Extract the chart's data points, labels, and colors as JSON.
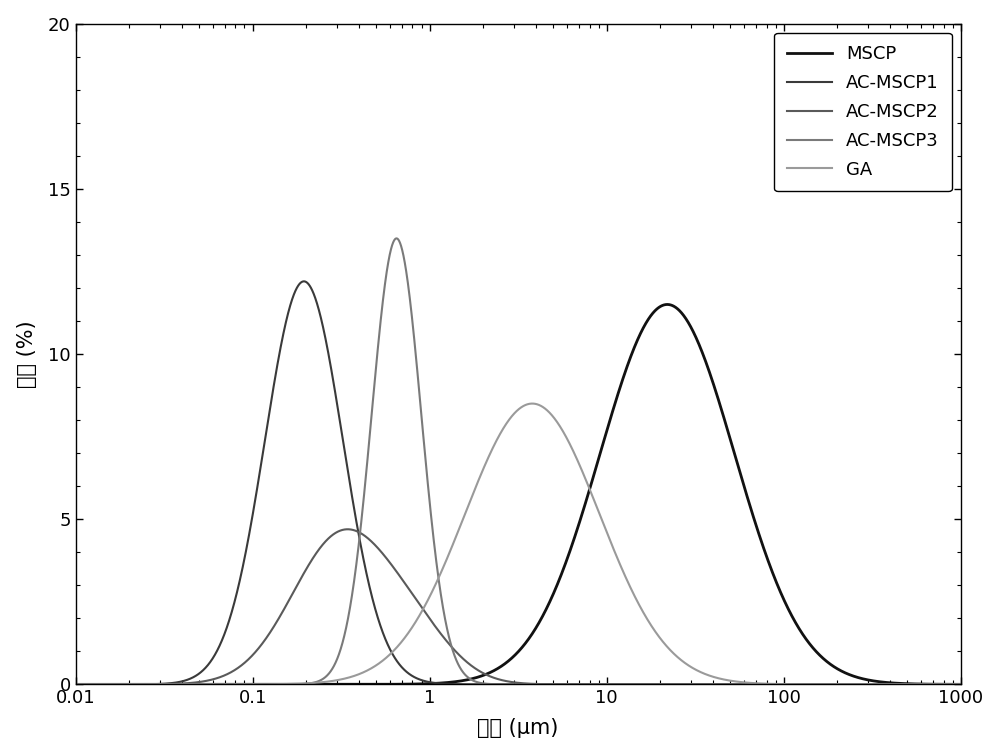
{
  "series": [
    {
      "label": "MSCP",
      "color": "#111111",
      "linewidth": 2.0,
      "peaks": [
        {
          "mu": 22.0,
          "val": 11.5,
          "sigma": 0.38
        }
      ]
    },
    {
      "label": "AC-MSCP1",
      "color": "#3a3a3a",
      "linewidth": 1.5,
      "peaks": [
        {
          "mu": 0.195,
          "val": 12.2,
          "sigma": 0.22
        }
      ]
    },
    {
      "label": "AC-MSCP2",
      "color": "#5a5a5a",
      "linewidth": 1.5,
      "peaks": [
        {
          "mu": 0.32,
          "val": 4.5,
          "sigma": 0.28
        },
        {
          "mu": 0.85,
          "val": 1.1,
          "sigma": 0.22
        }
      ]
    },
    {
      "label": "AC-MSCP3",
      "color": "#7a7a7a",
      "linewidth": 1.5,
      "peaks": [
        {
          "mu": 0.65,
          "val": 13.5,
          "sigma": 0.14
        }
      ]
    },
    {
      "label": "GA",
      "color": "#9a9a9a",
      "linewidth": 1.5,
      "peaks": [
        {
          "mu": 3.8,
          "val": 8.5,
          "sigma": 0.38
        }
      ]
    }
  ],
  "xlim": [
    0.01,
    1000
  ],
  "ylim": [
    0,
    20
  ],
  "yticks": [
    0,
    5,
    10,
    15,
    20
  ],
  "xticks": [
    0.01,
    0.1,
    1,
    10,
    100,
    1000
  ],
  "xtick_labels": [
    "0.01",
    "0.1",
    "1",
    "10",
    "100",
    "1000"
  ],
  "xlabel": "粒径 (μm)",
  "ylabel": "频率 (%)",
  "legend_loc": "upper right",
  "background_color": "#ffffff",
  "tick_labelsize": 13,
  "label_fontsize": 15,
  "legend_fontsize": 13
}
